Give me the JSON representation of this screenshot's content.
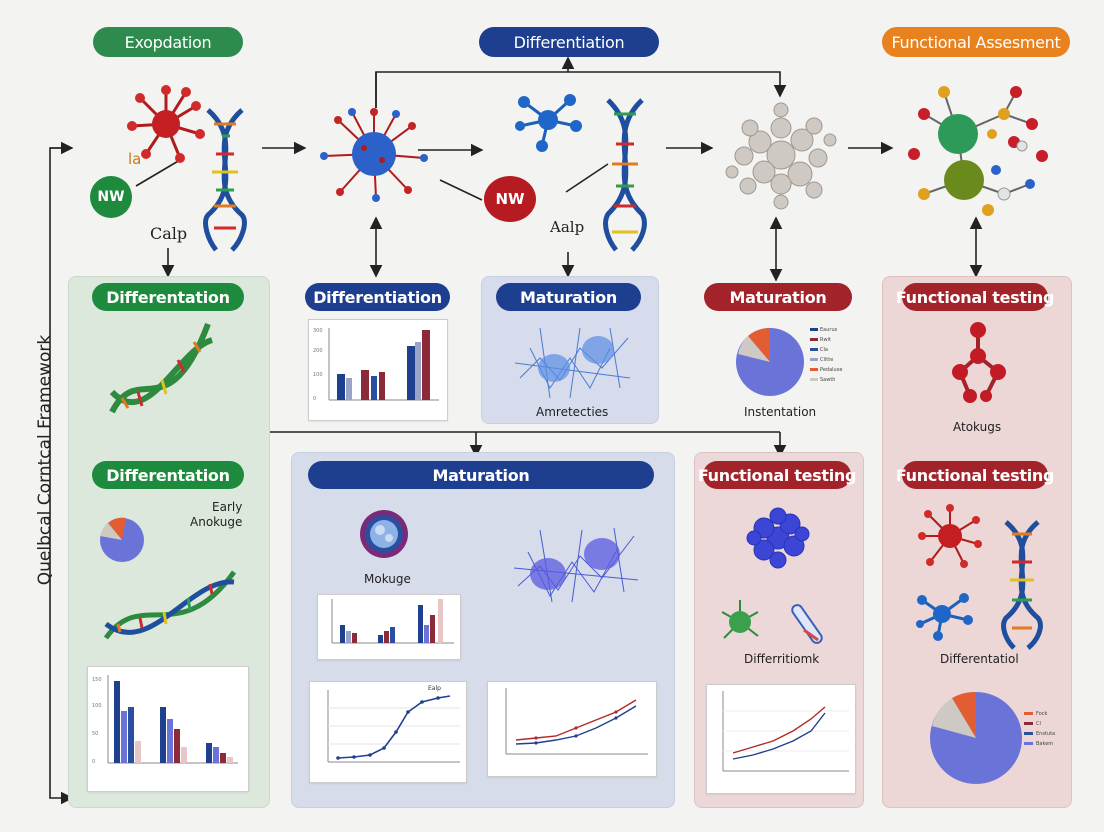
{
  "side_label": "Quelbcal Corntcal Framework",
  "colors": {
    "green": "#1e8a4e",
    "navy": "#1e3f8f",
    "orange": "#e8821f",
    "maroon": "#a3232b",
    "panel_green": "#dfeadf",
    "panel_blue": "#d7dde9",
    "panel_pink": "#ecd8d8"
  },
  "top_pills": {
    "left": "Exopdation",
    "center": "Differentiation",
    "right": "Functional Assesment"
  },
  "top_row": {
    "nw_green": "NW",
    "la": "la",
    "calp": "Calp",
    "nw_red": "NW",
    "aalp": "Aalp"
  },
  "panels": {
    "p1": {
      "title": "Differentation"
    },
    "p2": {
      "title": "Differentiation"
    },
    "p3": {
      "title": "Maturation",
      "caption": "Amretecties"
    },
    "p4": {
      "title": "Maturation",
      "caption": "Instentation",
      "legend": [
        "Eaurus",
        "Rwit",
        "Cla",
        "Clitte",
        "Pedaluse",
        "Sawth"
      ]
    },
    "p5": {
      "title": "Functional testing",
      "caption": "Atokugs"
    },
    "p6": {
      "title": "Differentation",
      "caption": "Early\nAnokuge"
    },
    "p7": {
      "title": "Maturation",
      "caption": "Mokuge",
      "mini_label": "Ealp"
    },
    "p8": {
      "title": "Functional testing",
      "caption": "Differritiomk"
    },
    "p9": {
      "title": "Functional testing",
      "caption": "Differentatiol",
      "legend": [
        "Fock",
        "Cl",
        "Enstuta",
        "Bakem"
      ]
    }
  }
}
